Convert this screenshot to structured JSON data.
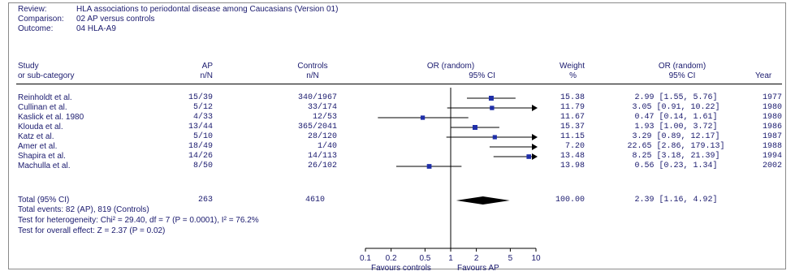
{
  "header": {
    "review_label": "Review:",
    "review_value": "HLA associations to periodontal disease among Caucasians (Version 01)",
    "comparison_label": "Comparison:",
    "comparison_value": "02 AP versus controls",
    "outcome_label": "Outcome:",
    "outcome_value": "04 HLA-A9"
  },
  "columns": {
    "study": [
      "Study",
      "or sub-category"
    ],
    "ap": [
      "AP",
      "n/N"
    ],
    "controls": [
      "Controls",
      "n/N"
    ],
    "plot": [
      "OR (random)",
      "95% CI"
    ],
    "weight": [
      "Weight",
      "%"
    ],
    "or": [
      "OR (random)",
      "95% CI"
    ],
    "year": [
      "Year",
      ""
    ]
  },
  "rows": [
    {
      "study": "Reinholdt et al.",
      "ap": "15/39",
      "controls": "340/1967",
      "weight": "15.38",
      "or_text": "2.99 [1.55, 5.76]",
      "year": "1977"
    },
    {
      "study": "Cullinan et al.",
      "ap": "5/12",
      "controls": "33/174",
      "weight": "11.79",
      "or_text": "3.05 [0.91, 10.22]",
      "year": "1980"
    },
    {
      "study": "Kaslick et al. 1980",
      "ap": "4/33",
      "controls": "12/53",
      "weight": "11.67",
      "or_text": "0.47 [0.14, 1.61]",
      "year": "1980"
    },
    {
      "study": "Klouda et al.",
      "ap": "13/44",
      "controls": "365/2041",
      "weight": "15.37",
      "or_text": "1.93 [1.00, 3.72]",
      "year": "1986"
    },
    {
      "study": "Katz et al.",
      "ap": "5/10",
      "controls": "28/120",
      "weight": "11.15",
      "or_text": "3.29 [0.89, 12.17]",
      "year": "1987"
    },
    {
      "study": "Amer et al.",
      "ap": "18/49",
      "controls": "1/40",
      "weight": "7.20",
      "or_text": "22.65 [2.86, 179.13]",
      "year": "1988"
    },
    {
      "study": "Shapira et al.",
      "ap": "14/26",
      "controls": "14/113",
      "weight": "13.48",
      "or_text": "8.25 [3.18, 21.39]",
      "year": "1994"
    },
    {
      "study": "Machulla et al.",
      "ap": "8/50",
      "controls": "26/102",
      "weight": "13.98",
      "or_text": "0.56 [0.23, 1.34]",
      "year": "2002"
    }
  ],
  "total": {
    "label": "Total (95% CI)",
    "ap": "263",
    "controls": "4610",
    "weight": "100.00",
    "or_text": "2.39 [1.16, 4.92]"
  },
  "notes": {
    "events": "Total events: 82 (AP), 819 (Controls)",
    "heterogeneity": "Test for heterogeneity: Chi² = 29.40, df = 7 (P = 0.0001), I² = 76.2%",
    "overall": "Test for overall effect: Z = 2.37 (P = 0.02)"
  },
  "footer": {
    "favours_left": "Favours controls",
    "favours_right": "Favours AP"
  },
  "chart_data": {
    "type": "forest",
    "x_scale": "log",
    "xlim": [
      0.1,
      10
    ],
    "reference_line": 1,
    "ticks": [
      0.1,
      0.2,
      0.5,
      1,
      2,
      5,
      10
    ],
    "tick_labels": [
      "0.1",
      "0.2",
      "0.5",
      "1",
      "2",
      "5",
      "10"
    ],
    "studies": [
      {
        "name": "Reinholdt et al.",
        "or": 2.99,
        "lo": 1.55,
        "hi": 5.76,
        "weight": 15.38
      },
      {
        "name": "Cullinan et al.",
        "or": 3.05,
        "lo": 0.91,
        "hi": 10.22,
        "weight": 11.79
      },
      {
        "name": "Kaslick et al. 1980",
        "or": 0.47,
        "lo": 0.14,
        "hi": 1.61,
        "weight": 11.67
      },
      {
        "name": "Klouda et al.",
        "or": 1.93,
        "lo": 1.0,
        "hi": 3.72,
        "weight": 15.37
      },
      {
        "name": "Katz et al.",
        "or": 3.29,
        "lo": 0.89,
        "hi": 12.17,
        "weight": 11.15
      },
      {
        "name": "Amer et al.",
        "or": 22.65,
        "lo": 2.86,
        "hi": 179.13,
        "weight": 7.2
      },
      {
        "name": "Shapira et al.",
        "or": 8.25,
        "lo": 3.18,
        "hi": 21.39,
        "weight": 13.48
      },
      {
        "name": "Machulla et al.",
        "or": 0.56,
        "lo": 0.23,
        "hi": 1.34,
        "weight": 13.98
      }
    ],
    "pooled": {
      "or": 2.39,
      "lo": 1.16,
      "hi": 4.92
    },
    "colors": {
      "marker": "#1f2fa8",
      "line": "#000000",
      "diamond": "#000000"
    }
  }
}
